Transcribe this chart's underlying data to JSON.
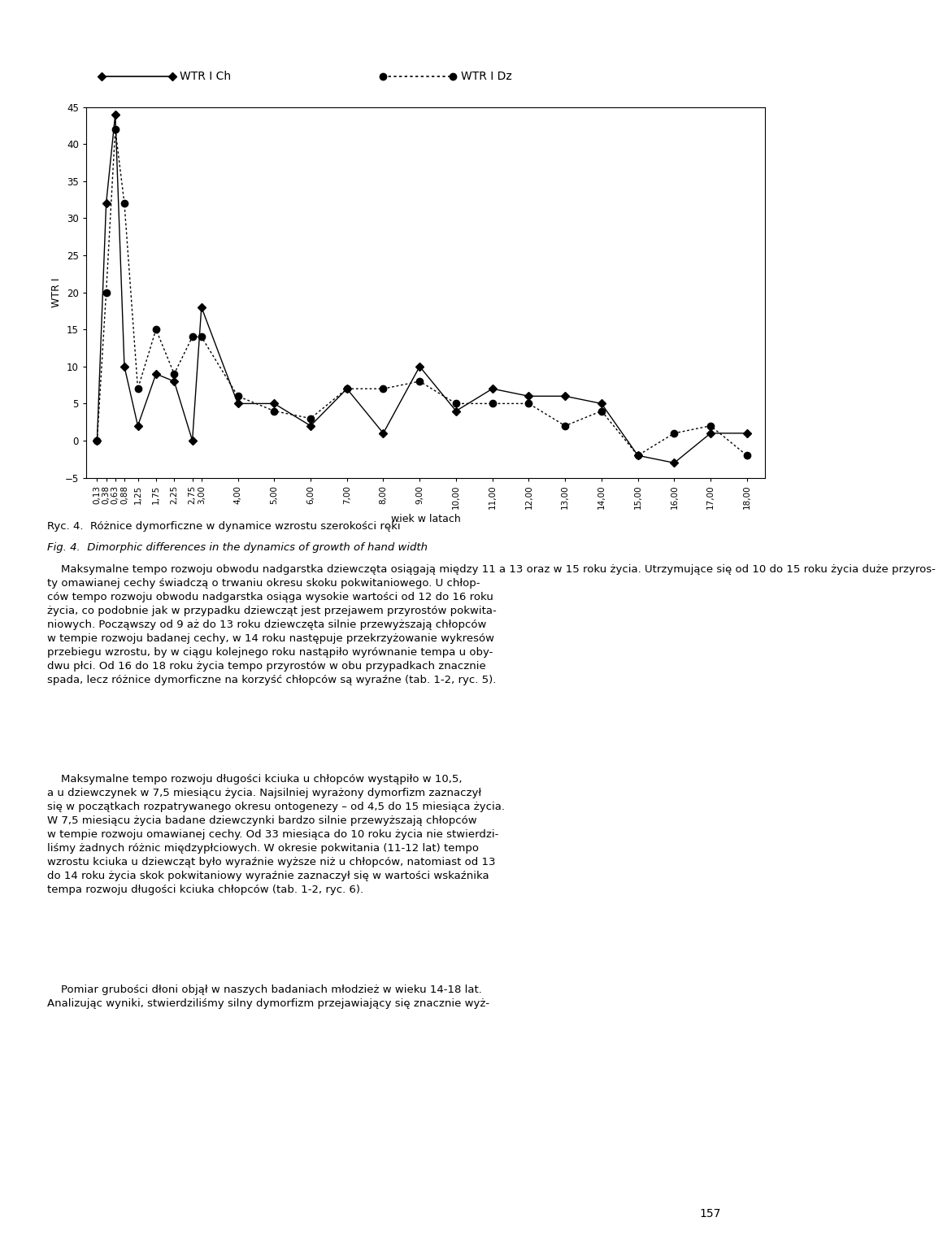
{
  "x_labels": [
    "0,13",
    "0,38",
    "0,63",
    "0,88",
    "1,25",
    "1,75",
    "2,25",
    "2,75",
    "3,00",
    "4,00",
    "5,00",
    "6,00",
    "7,00",
    "8,00",
    "9,00",
    "10,00",
    "11,00",
    "12,00",
    "13,00",
    "14,00",
    "15,00",
    "16,00",
    "17,00",
    "18,00"
  ],
  "x_values": [
    0.13,
    0.38,
    0.63,
    0.88,
    1.25,
    1.75,
    2.25,
    2.75,
    3.0,
    4.0,
    5.0,
    6.0,
    7.0,
    8.0,
    9.0,
    10.0,
    11.0,
    12.0,
    13.0,
    14.0,
    15.0,
    16.0,
    17.0,
    18.0
  ],
  "wtr_ch": [
    0,
    32,
    44,
    10,
    2,
    9,
    8,
    0,
    18,
    5,
    5,
    2,
    7,
    1,
    10,
    4,
    7,
    6,
    6,
    5,
    -2,
    -3,
    1,
    1
  ],
  "wtr_dz": [
    0,
    20,
    42,
    32,
    7,
    15,
    9,
    14,
    14,
    6,
    4,
    3,
    7,
    7,
    8,
    5,
    5,
    5,
    2,
    4,
    -2,
    1,
    2,
    -2
  ],
  "ylabel": "WTR I",
  "xlabel": "wiek w latach",
  "ylim_min": -5,
  "ylim_max": 45,
  "yticks": [
    -5,
    0,
    5,
    10,
    15,
    20,
    25,
    30,
    35,
    40,
    45
  ],
  "legend_ch": "WTR I Ch",
  "legend_dz": "WTR I Dz",
  "bg_color": "white",
  "text_lines": [
    "Ryc. 4.  Różnice dymorficzne w dynamice wzrostu szerokości ręki",
    "Fig. 4.  Dimorphic differences in the dynamics of growth of hand width",
    "",
    "    Maksymalne tempo rozwoju obwodu nadgarstka dziewczęta osiągają między 11 a 13 oraz w 15 roku życia. Utrzymujące się od 10 do 15 roku życia duże przyros-ty omawianej cechy świadczą o trwaniu okresu skoku pokwitaniowego. U chłop-ców tempo rozwoju obwodu nadgarstka osiąga wysokie wartości od 12 do 16 roku życia, co podobnie jak w przypadku dziewcząt jest przejawem przyrostów pokwita-niowych. Począwszy od 9 aż do 13 roku dziewczęta silnie przewyższają chłopców w tempie rozwoju badanej cechy, w 14 roku następuje przekrzyżowanie wykresów przebiegu wzrostu, by w ciągu kolejnego roku nastąpiło wyrównanie tempa u oby-dwu płci. Od 16 do 18 roku życia tempo przyrostów w obu przypadkach znacznie spada, lecz różnice dymorficzne na korzyść chłopców są wyraźne (tab. 1-2, ryc. 5).",
    "    Maksymalne tempo rozwoju długości kciuka u chłopców wystąpiło w 10,5, a u dziewczynek w 7,5 miesiącu życia. Najsilniej wyrażony dymorfizm zaznaczył się w początkach rozpatrywanego okresu ontogenezy – od 4,5 do 15 miesiąca życia. W 7,5 miesiącu życia badane dziewczynki bardzo silnie przewyższają chłopców w tempie rozwoju omawianej cechy. Od 33 miesiąca do 10 roku życia nie stwierdzi-liśmy żadnych różnic międzypłciowych. W okresie pokwitania (11-12 lat) tempo wzrostu kciuka u dziewcząt było wyraźnie wyższe niż u chłopców, natomiast od 13 do 14 roku życia skok pokwitaniowy wyraźnie zaznaczył się w wartości wskaźnika tempa rozwoju długości kciuka chłopców (tab. 1-2, ryc. 6).",
    "    Pomiar grubości dłoni objął w naszych badaniach młodzież w wieku 14-18 lat. Analizując wyniki, stwierdziliśmy silny dymorfizm przejawiający się znacznie wyż-"
  ]
}
